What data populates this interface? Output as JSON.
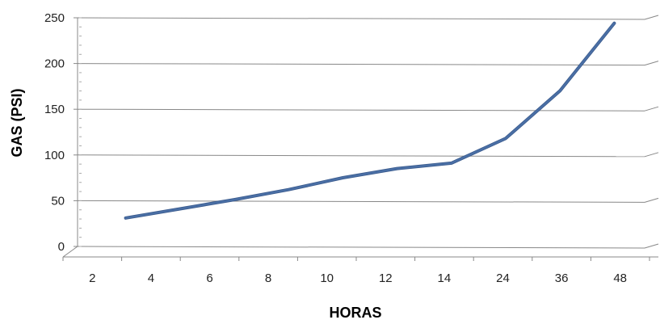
{
  "chart_data": {
    "type": "line",
    "title": "",
    "xlabel": "HORAS",
    "ylabel": "GAS (PSI)",
    "categories": [
      "2",
      "4",
      "6",
      "8",
      "10",
      "12",
      "14",
      "24",
      "36",
      "48"
    ],
    "series": [
      {
        "values": [
          32,
          42,
          52,
          63,
          76,
          86,
          92,
          119,
          171,
          245
        ],
        "color": "#4a6fa5"
      }
    ],
    "yticks": [
      0,
      50,
      100,
      150,
      200,
      250
    ],
    "ylim": [
      0,
      250
    ],
    "grid": true,
    "legend": "none",
    "style": "3d-line"
  }
}
